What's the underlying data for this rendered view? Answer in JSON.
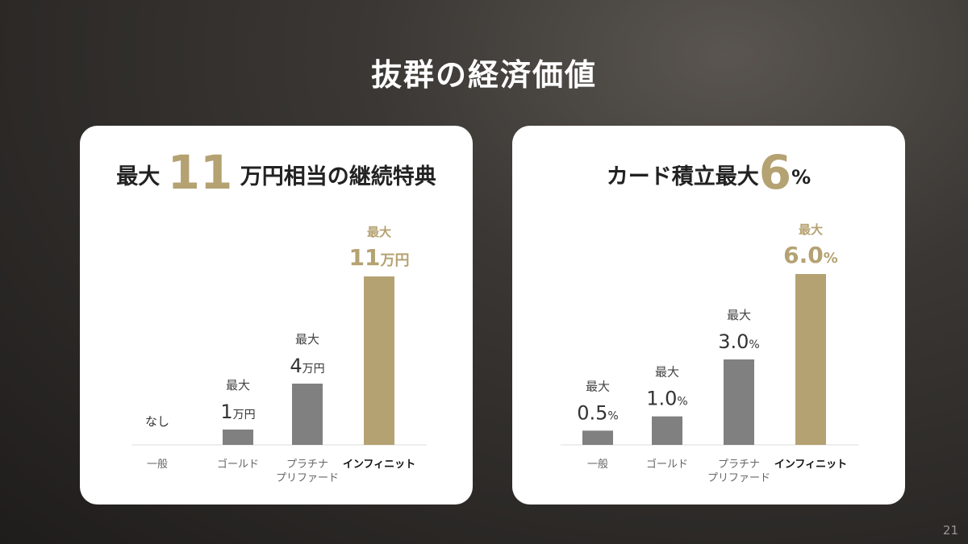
{
  "slide": {
    "title": "抜群の経済価値",
    "page_number": "21"
  },
  "colors": {
    "accent": "#b5a272",
    "bar_gray": "#808080",
    "text": "#222222",
    "sub_text": "#555555"
  },
  "cards": [
    {
      "heading": {
        "prefix": "最大",
        "highlight": "11",
        "suffix": "万円相当の継続特典"
      },
      "chart_data": {
        "type": "bar",
        "categories": [
          "一般",
          "ゴールド",
          "プラチナ\nプリファード",
          "インフィニット"
        ],
        "values": [
          0,
          1,
          4,
          11
        ],
        "labels": [
          {
            "top": "",
            "value": "なし",
            "unit": ""
          },
          {
            "top": "最大",
            "value": "1",
            "unit": "万円"
          },
          {
            "top": "最大",
            "value": "4",
            "unit": "万円"
          },
          {
            "top": "最大",
            "value": "11",
            "unit": "万円"
          }
        ],
        "highlight_index": 3,
        "ylim": [
          0,
          11
        ],
        "grid": false
      }
    },
    {
      "heading": {
        "prefix": "カード積立最大",
        "highlight": "6",
        "suffix": "%"
      },
      "chart_data": {
        "type": "bar",
        "categories": [
          "一般",
          "ゴールド",
          "プラチナ\nプリファード",
          "インフィニット"
        ],
        "values": [
          0.5,
          1.0,
          3.0,
          6.0
        ],
        "labels": [
          {
            "top": "最大",
            "value": "0.5",
            "unit": "%"
          },
          {
            "top": "最大",
            "value": "1.0",
            "unit": "%"
          },
          {
            "top": "最大",
            "value": "3.0",
            "unit": "%"
          },
          {
            "top": "最大",
            "value": "6.0",
            "unit": "%"
          }
        ],
        "highlight_index": 3,
        "ylim": [
          0,
          6
        ],
        "grid": false
      }
    }
  ]
}
